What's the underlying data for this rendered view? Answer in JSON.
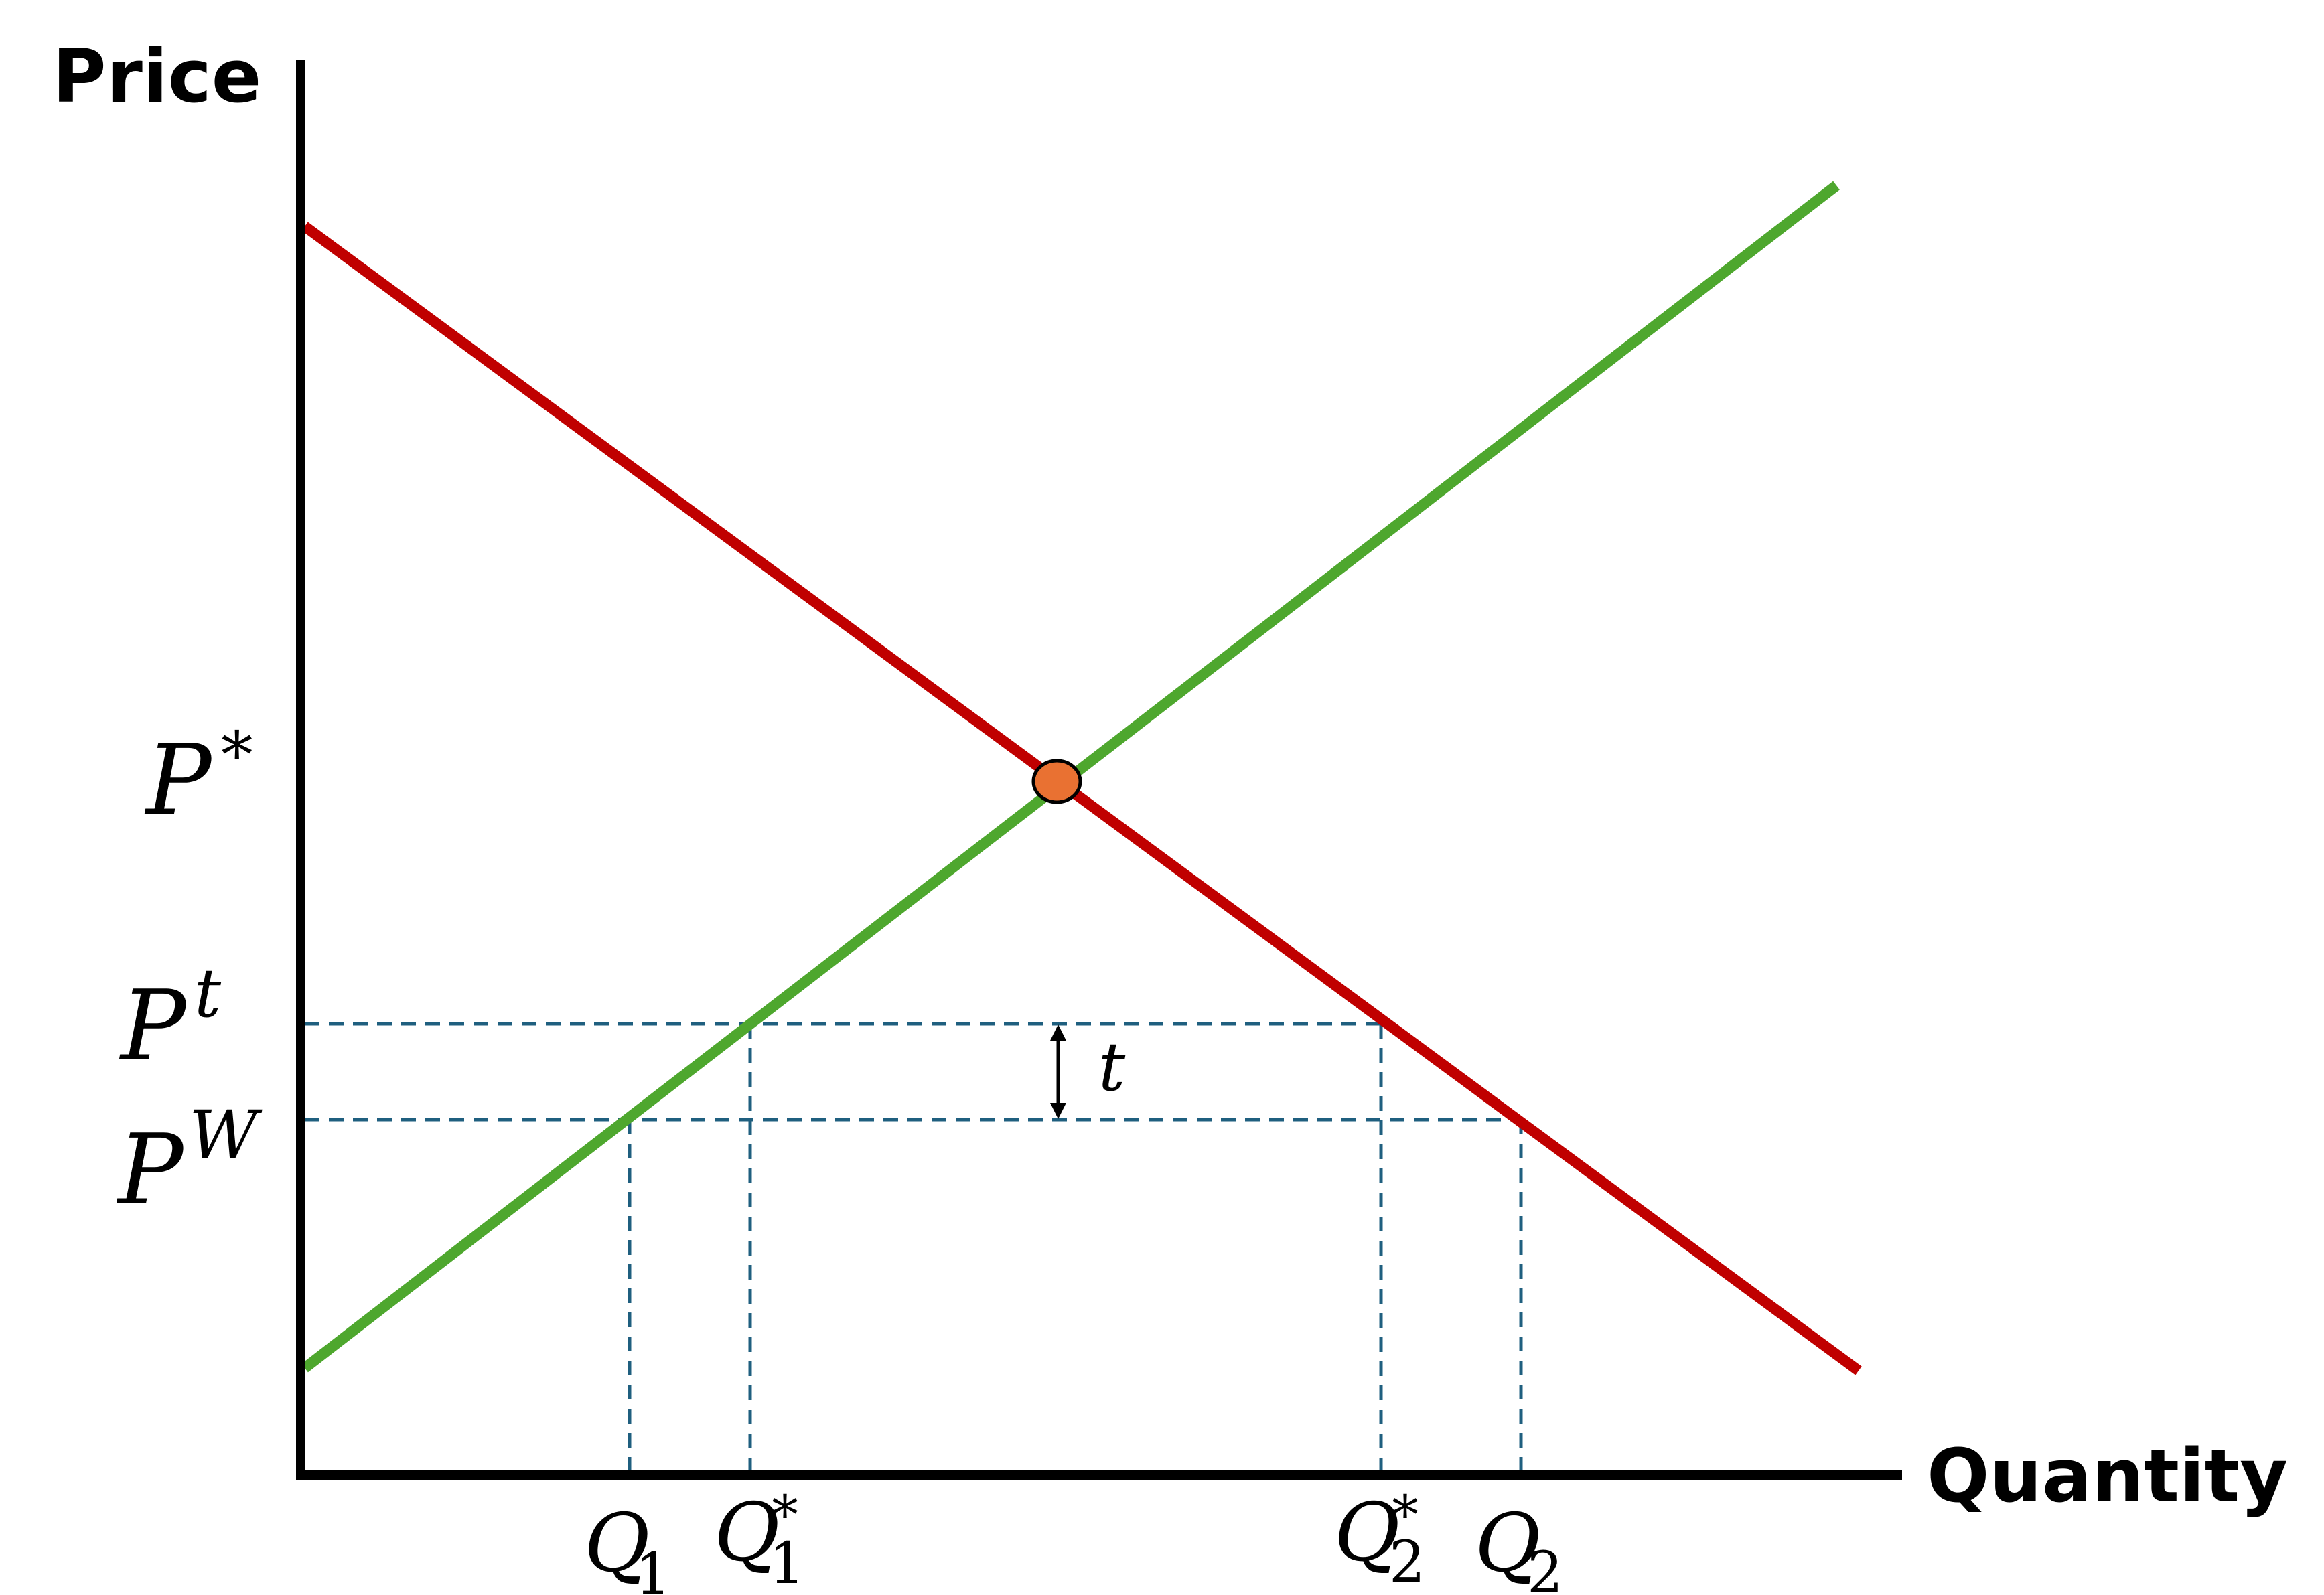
{
  "axes": {
    "y_title": "Price",
    "x_title": "Quantity"
  },
  "price_labels": {
    "p_star": {
      "base": "P",
      "sup": "*"
    },
    "p_t": {
      "base": "P",
      "sup": "t"
    },
    "p_w": {
      "base": "P",
      "sup": "W"
    }
  },
  "quantity_labels": {
    "q1": {
      "base": "Q",
      "sub": "1"
    },
    "q1_star": {
      "base": "Q",
      "sub": "1",
      "sup": "*"
    },
    "q2_star": {
      "base": "Q",
      "sub": "2",
      "sup": "*"
    },
    "q2": {
      "base": "Q",
      "sub": "2"
    }
  },
  "tariff_label": "t",
  "colors": {
    "demand": "#c00000",
    "supply": "#4ea72e",
    "equilibrium": "#e97132",
    "guides": "#1f5f7f",
    "axes": "#000000"
  }
}
